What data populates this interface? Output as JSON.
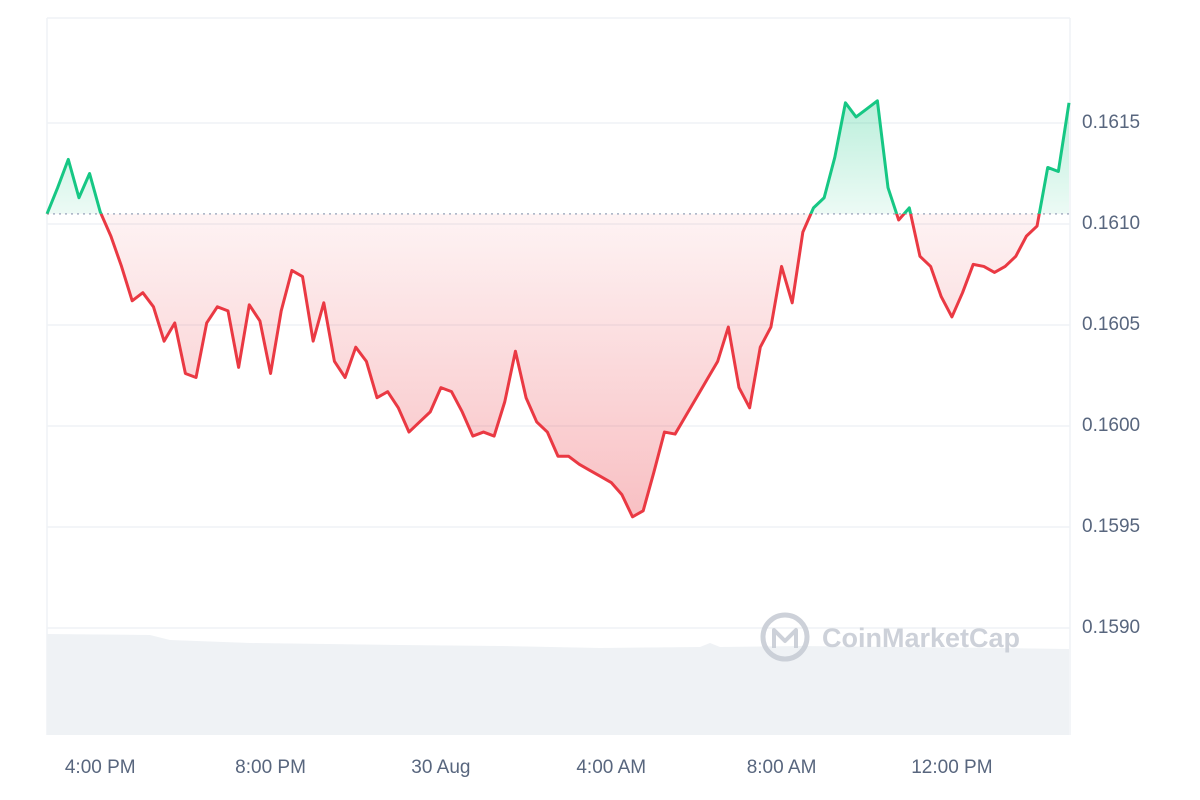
{
  "chart_data": {
    "type": "line",
    "x": [
      -9.25,
      -9,
      -8.75,
      -8.5,
      -8.25,
      -8,
      -7.75,
      -7.5,
      -7.25,
      -7,
      -6.75,
      -6.5,
      -6.25,
      -6,
      -5.75,
      -5.5,
      -5.25,
      -5,
      -4.75,
      -4.5,
      -4.25,
      -4,
      -3.75,
      -3.5,
      -3.25,
      -3,
      -2.75,
      -2.5,
      -2.25,
      -2,
      -1.75,
      -1.5,
      -1.25,
      -1,
      -0.75,
      -0.5,
      -0.25,
      0,
      0.25,
      0.5,
      0.75,
      1,
      1.25,
      1.5,
      1.75,
      2,
      2.25,
      2.5,
      2.75,
      3,
      3.25,
      3.5,
      3.75,
      4,
      4.25,
      4.5,
      4.75,
      5,
      5.25,
      5.5,
      5.75,
      6,
      6.25,
      6.5,
      6.75,
      7,
      7.25,
      7.5,
      7.75,
      8,
      8.25,
      8.5,
      8.75,
      9,
      9.25,
      9.5,
      9.75,
      10,
      10.25,
      10.5,
      10.75,
      11,
      11.25,
      11.5,
      11.75,
      12,
      12.25,
      12.5,
      12.75,
      13,
      13.25,
      13.5,
      13.75,
      14,
      14.25,
      14.5,
      14.75
    ],
    "values": [
      0.16105,
      0.16118,
      0.16132,
      0.16113,
      0.16125,
      0.16106,
      0.16094,
      0.16079,
      0.16062,
      0.16066,
      0.16059,
      0.16042,
      0.16051,
      0.16026,
      0.16024,
      0.16051,
      0.16059,
      0.16057,
      0.16029,
      0.1606,
      0.16052,
      0.16026,
      0.16057,
      0.16077,
      0.16074,
      0.16042,
      0.16061,
      0.16032,
      0.16024,
      0.16039,
      0.16032,
      0.16014,
      0.16017,
      0.16009,
      0.15997,
      0.16002,
      0.16007,
      0.16019,
      0.16017,
      0.16007,
      0.15995,
      0.15997,
      0.15995,
      0.16012,
      0.16037,
      0.16014,
      0.16002,
      0.15997,
      0.15985,
      0.15985,
      0.15981,
      0.15978,
      0.15975,
      0.15972,
      0.15966,
      0.15955,
      0.15958,
      0.15977,
      0.15997,
      0.15996,
      0.16005,
      0.16014,
      0.16023,
      0.16032,
      0.16049,
      0.16019,
      0.16009,
      0.16039,
      0.16049,
      0.16079,
      0.16061,
      0.16096,
      0.16108,
      0.16113,
      0.16133,
      0.1616,
      0.16153,
      0.16157,
      0.16161,
      0.16118,
      0.16102,
      0.16108,
      0.16084,
      0.16079,
      0.16064,
      0.16054,
      0.16066,
      0.1608,
      0.16079,
      0.16076,
      0.16079,
      0.16084,
      0.16094,
      0.16099,
      0.16128,
      0.16126,
      0.1616
    ],
    "reference_value": 0.16105,
    "up_color": "#16c784",
    "down_color": "#ea3943",
    "xlim": [
      -9.25,
      14.75
    ],
    "xticks": [
      {
        "value": -8,
        "label": "4:00 PM"
      },
      {
        "value": -4,
        "label": "8:00 PM"
      },
      {
        "value": 0,
        "label": "30 Aug"
      },
      {
        "value": 4,
        "label": "4:00 AM"
      },
      {
        "value": 8,
        "label": "8:00 AM"
      },
      {
        "value": 12,
        "label": "12:00 PM"
      }
    ],
    "ylim": [
      0.15847,
      0.16202
    ],
    "yticks": [
      {
        "value": 0.159,
        "label": "0.1590"
      },
      0.1595,
      {
        "value": 0.16,
        "label": "0.1600"
      },
      0.1605,
      {
        "value": 0.161,
        "label": "0.1610"
      },
      0.1615
    ],
    "grid": true,
    "watermark": "CoinMarketCap"
  }
}
